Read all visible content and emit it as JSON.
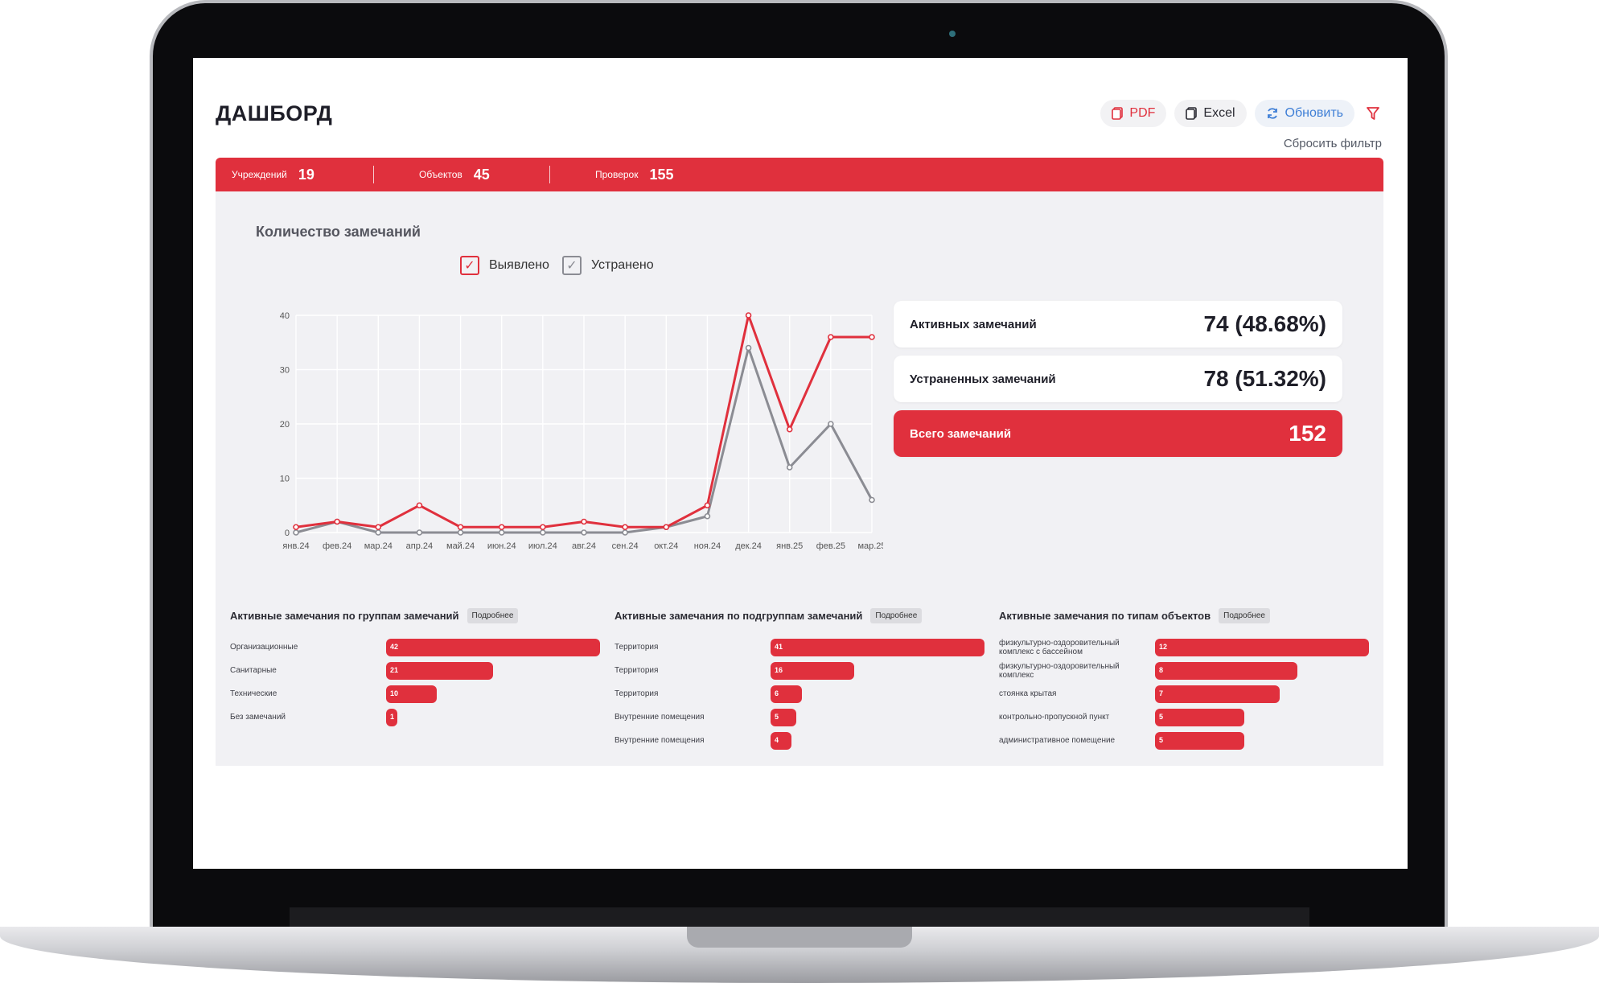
{
  "header": {
    "title": "ДАШБОРД",
    "buttons": {
      "pdf": "PDF",
      "excel": "Excel",
      "refresh": "Обновить"
    },
    "reset_filter": "Сбросить фильтр"
  },
  "stats": [
    {
      "label": "Учреждений",
      "value": "19"
    },
    {
      "label": "Объектов",
      "value": "45"
    },
    {
      "label": "Проверок",
      "value": "155"
    }
  ],
  "kpis": {
    "active": {
      "label": "Активных замечаний",
      "value": "74 (48.68%)"
    },
    "fixed": {
      "label": "Устраненных замечаний",
      "value": "78 (51.32%)"
    },
    "total": {
      "label": "Всего замечаний",
      "value": "152"
    }
  },
  "colors": {
    "accent": "#e0303d",
    "secondary": "#8b8c93",
    "panel": "#f1f1f4"
  },
  "chart_data": {
    "type": "line",
    "title": "Количество замечаний",
    "categories": [
      "янв.24",
      "фев.24",
      "мар.24",
      "апр.24",
      "май.24",
      "июн.24",
      "июл.24",
      "авг.24",
      "сен.24",
      "окт.24",
      "ноя.24",
      "дек.24",
      "янв.25",
      "фев.25",
      "мар.25"
    ],
    "series": [
      {
        "name": "Выявлено",
        "color": "#e0303d",
        "values": [
          1,
          2,
          1,
          5,
          1,
          1,
          1,
          2,
          1,
          1,
          5,
          40,
          19,
          36,
          36
        ]
      },
      {
        "name": "Устранено",
        "color": "#8b8c93",
        "values": [
          0,
          2,
          0,
          0,
          0,
          0,
          0,
          0,
          0,
          1,
          3,
          34,
          12,
          20,
          6
        ]
      }
    ],
    "ylim": [
      0,
      40
    ],
    "yticks": [
      0,
      10,
      20,
      30,
      40
    ],
    "grid": true,
    "legend": "top"
  },
  "groups": [
    {
      "title": "Активные замечания по группам замечаний",
      "more": "Подробнее",
      "items": [
        {
          "label": "Организационные",
          "value": 42
        },
        {
          "label": "Санитарные",
          "value": 21
        },
        {
          "label": "Технические",
          "value": 10
        },
        {
          "label": "Без замечаний",
          "value": 1
        }
      ]
    },
    {
      "title": "Активные замечания по подгруппам замечаний",
      "more": "Подробнее",
      "items": [
        {
          "label": "Территория",
          "value": 41
        },
        {
          "label": "Территория",
          "value": 16
        },
        {
          "label": "Территория",
          "value": 6
        },
        {
          "label": "Внутренние помещения",
          "value": 5
        },
        {
          "label": "Внутренние помещения",
          "value": 4
        }
      ]
    },
    {
      "title": "Активные замечания по типам объектов",
      "more": "Подробнее",
      "items": [
        {
          "label": "физкультурно-оздоровительный комплекс с бассейном",
          "value": 12
        },
        {
          "label": "физкультурно-оздоровительный комплекс",
          "value": 8
        },
        {
          "label": "стоянка крытая",
          "value": 7
        },
        {
          "label": "контрольно-пропускной пункт",
          "value": 5
        },
        {
          "label": "административное помещение",
          "value": 5
        }
      ]
    }
  ]
}
